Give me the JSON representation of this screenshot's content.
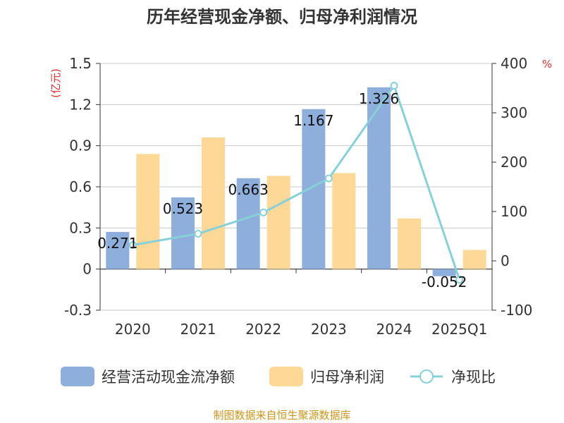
{
  "title": "历年经营现金净额、归母净利润情况",
  "source": "制图数据来自恒生聚源数据库",
  "chart_data": {
    "type": "bar",
    "categories": [
      "2020",
      "2021",
      "2022",
      "2023",
      "2024",
      "2025Q1"
    ],
    "y_left": {
      "unit": "(亿元)",
      "min": -0.3,
      "max": 1.5,
      "ticks": [
        "-0.3",
        "0",
        "0.3",
        "0.6",
        "0.9",
        "1.2",
        "1.5"
      ]
    },
    "y_right": {
      "unit": "%",
      "min": -100,
      "max": 400,
      "ticks": [
        "-100",
        "0",
        "100",
        "200",
        "300",
        "400"
      ]
    },
    "series": [
      {
        "name": "经营活动现金流净额",
        "type": "bar",
        "axis": "left",
        "color": "#8eaedb",
        "values": [
          0.271,
          0.523,
          0.663,
          1.167,
          1.326,
          -0.052
        ],
        "labels": [
          "0.271",
          "0.523",
          "0.663",
          "1.167",
          "1.326",
          "-0.052"
        ]
      },
      {
        "name": "归母净利润",
        "type": "bar",
        "axis": "left",
        "color": "#fdd896",
        "values": [
          0.84,
          0.96,
          0.68,
          0.7,
          0.37,
          0.14
        ]
      },
      {
        "name": "净现比",
        "type": "line",
        "axis": "right",
        "color": "#86d0d8",
        "values": [
          32,
          55,
          98,
          167,
          355,
          -38
        ]
      }
    ],
    "grid": true,
    "legend": "bottom"
  }
}
